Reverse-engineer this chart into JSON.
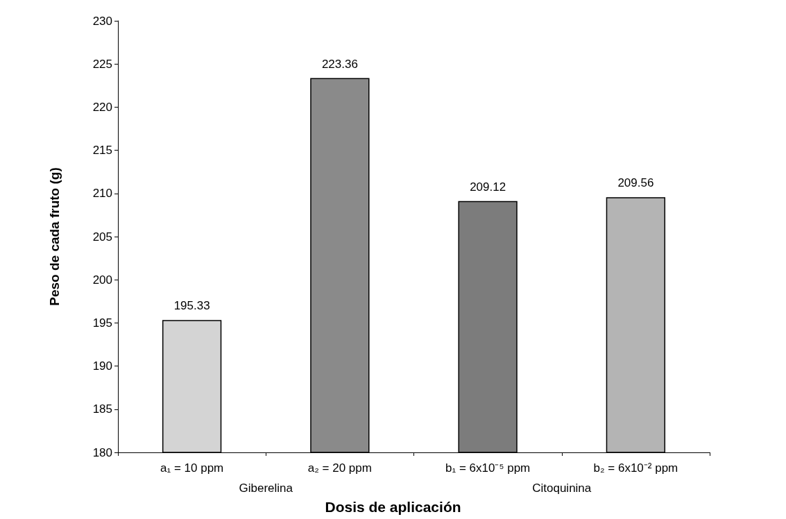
{
  "chart_data": {
    "type": "bar",
    "xlabel": "Dosis de aplicación",
    "ylabel": "Peso de cada fruto (g)",
    "categories": [
      "a₁ = 10 ppm",
      "a₂ = 20 ppm",
      "b₁ = 6x10⁻⁵ ppm",
      "b₂ = 6x10⁻² ppm"
    ],
    "values": [
      195.33,
      223.36,
      209.12,
      209.56
    ],
    "colors": [
      "#d4d4d4",
      "#8a8a8a",
      "#7c7c7c",
      "#b4b4b4"
    ],
    "ylim": [
      180,
      230
    ],
    "yticks": [
      180,
      185,
      190,
      195,
      200,
      205,
      210,
      215,
      220,
      225,
      230
    ],
    "data_labels": true,
    "grid": false,
    "annotations": [
      "Giberelina",
      "Citoquinina"
    ]
  }
}
